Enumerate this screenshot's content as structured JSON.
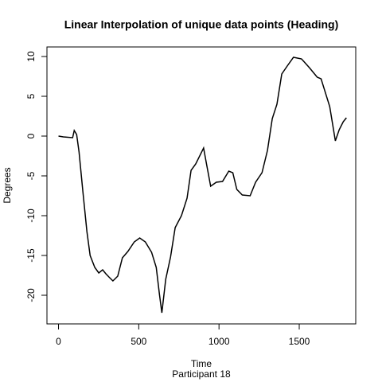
{
  "chart_data": {
    "type": "line",
    "title": "Linear Interpolation of unique data points (Heading)",
    "x_label": "Time",
    "subtitle": "Participant  18",
    "y_label": "Degrees",
    "x": [
      0,
      30,
      88,
      98,
      113,
      128,
      152,
      177,
      197,
      226,
      251,
      275,
      295,
      314,
      339,
      369,
      398,
      432,
      472,
      506,
      541,
      580,
      609,
      629,
      644,
      668,
      698,
      727,
      766,
      801,
      826,
      855,
      904,
      924,
      948,
      983,
      1022,
      1061,
      1086,
      1111,
      1145,
      1194,
      1228,
      1268,
      1302,
      1332,
      1361,
      1391,
      1425,
      1464,
      1514,
      1563,
      1612,
      1636,
      1690,
      1725,
      1749,
      1774,
      1794
    ],
    "series": [
      {
        "name": "Heading",
        "color": "#000000",
        "values": [
          0,
          -0.1,
          -0.2,
          0.7,
          0.2,
          -2,
          -7,
          -12,
          -15,
          -16.5,
          -17.2,
          -16.8,
          -17.3,
          -17.7,
          -18.2,
          -17.6,
          -15.3,
          -14.5,
          -13.3,
          -12.8,
          -13.3,
          -14.6,
          -16.5,
          -19.9,
          -22.2,
          -18,
          -15.2,
          -11.5,
          -10,
          -7.8,
          -4.3,
          -3.5,
          -1.5,
          -3.7,
          -6.3,
          -5.8,
          -5.7,
          -4.4,
          -4.6,
          -6.7,
          -7.4,
          -7.5,
          -5.8,
          -4.6,
          -1.8,
          2.2,
          4,
          7.8,
          8.8,
          9.9,
          9.7,
          8.6,
          7.4,
          7.2,
          3.7,
          -0.6,
          0.8,
          1.8,
          2.3
        ]
      }
    ],
    "xlim": [
      -72,
      1852
    ],
    "ylim": [
      -23.6,
      11.2
    ],
    "xticks": [
      0,
      500,
      1000,
      1500
    ],
    "yticks": [
      -20,
      -15,
      -10,
      -5,
      0,
      5,
      10
    ]
  }
}
